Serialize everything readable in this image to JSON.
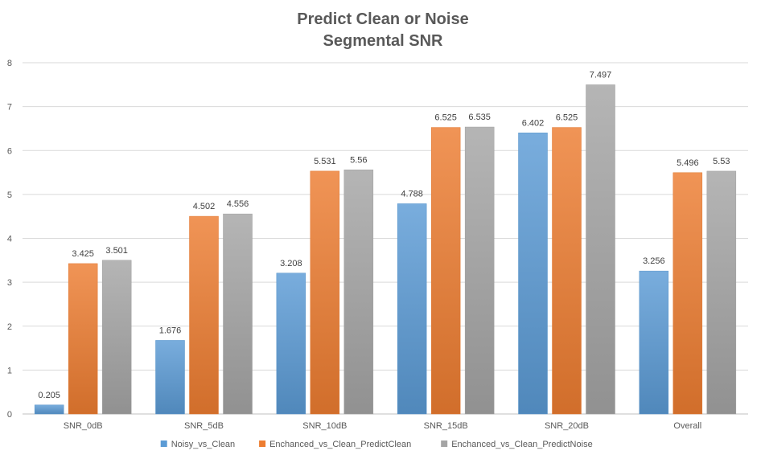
{
  "chart_data": {
    "type": "bar",
    "title": "Predict Clean or Noise",
    "subtitle": "Segmental SNR",
    "xlabel": "",
    "ylabel": "",
    "ylim": [
      0,
      8
    ],
    "yticks": [
      0,
      1,
      2,
      3,
      4,
      5,
      6,
      7,
      8
    ],
    "grid": true,
    "legend_position": "bottom",
    "categories": [
      "SNR_0dB",
      "SNR_5dB",
      "SNR_10dB",
      "SNR_15dB",
      "SNR_20dB",
      "Overall"
    ],
    "series": [
      {
        "name": "Noisy_vs_Clean",
        "color": "#5b9bd5",
        "values": [
          0.205,
          1.676,
          3.208,
          4.788,
          6.402,
          3.256
        ]
      },
      {
        "name": "Enchanced_vs_Clean_PredictClean",
        "color": "#ed7d31",
        "values": [
          3.425,
          4.502,
          5.531,
          6.525,
          6.525,
          5.496
        ]
      },
      {
        "name": "Enchanced_vs_Clean_PredictNoise",
        "color": "#a5a5a5",
        "values": [
          3.501,
          4.556,
          5.56,
          6.535,
          7.497,
          5.53
        ]
      }
    ]
  }
}
